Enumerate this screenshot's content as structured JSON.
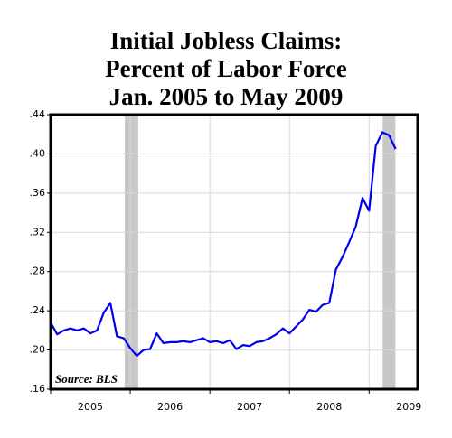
{
  "chart_data": {
    "type": "line",
    "title": [
      "Initial Jobless Claims:",
      "Percent of Labor Force",
      "Jan. 2005 to May 2009"
    ],
    "source": "Source: BLS",
    "x": [
      2005,
      2005.083,
      2005.167,
      2005.25,
      2005.333,
      2005.417,
      2005.5,
      2005.583,
      2005.667,
      2005.75,
      2005.833,
      2005.917,
      2006,
      2006.083,
      2006.167,
      2006.25,
      2006.333,
      2006.417,
      2006.5,
      2006.583,
      2006.667,
      2006.75,
      2006.833,
      2006.917,
      2007,
      2007.083,
      2007.167,
      2007.25,
      2007.333,
      2007.417,
      2007.5,
      2007.583,
      2007.667,
      2007.75,
      2007.833,
      2007.917,
      2008,
      2008.083,
      2008.167,
      2008.25,
      2008.333,
      2008.417,
      2008.5,
      2008.583,
      2008.667,
      2008.75,
      2008.833,
      2008.917,
      2009,
      2009.083,
      2009.167,
      2009.25,
      2009.333
    ],
    "series": [
      {
        "color": "#0000ee",
        "values": [
          0.228,
          0.216,
          0.22,
          0.222,
          0.22,
          0.222,
          0.217,
          0.22,
          0.238,
          0.248,
          0.214,
          0.212,
          0.202,
          0.194,
          0.2,
          0.201,
          0.217,
          0.207,
          0.208,
          0.208,
          0.209,
          0.208,
          0.21,
          0.212,
          0.208,
          0.209,
          0.207,
          0.21,
          0.201,
          0.205,
          0.204,
          0.208,
          0.209,
          0.212,
          0.216,
          0.222,
          0.217,
          0.224,
          0.231,
          0.241,
          0.239,
          0.246,
          0.248,
          0.282,
          0.295,
          0.31,
          0.326,
          0.355,
          0.342,
          0.408,
          0.422,
          0.419,
          0.405
        ]
      }
    ],
    "shaded_regions": [
      [
        2005.93,
        2006.1
      ],
      [
        2009.17,
        2009.33
      ]
    ],
    "shade_color": "#c8c8c8",
    "xlim": [
      2005,
      2009.61
    ],
    "xticks": [
      2005,
      2006,
      2007,
      2008,
      2009
    ],
    "ylim": [
      0.16,
      0.44
    ],
    "yticks": [
      {
        "value": 0.16,
        "label": ".16"
      },
      {
        "value": 0.2,
        "label": ".20"
      },
      {
        "value": 0.24,
        "label": ".24"
      },
      {
        "value": 0.28,
        "label": ".28"
      },
      {
        "value": 0.32,
        "label": ".32"
      },
      {
        "value": 0.36,
        "label": ".36"
      },
      {
        "value": 0.4,
        "label": ".40"
      },
      {
        "value": 0.44,
        "label": ".44"
      }
    ],
    "grid": true
  }
}
